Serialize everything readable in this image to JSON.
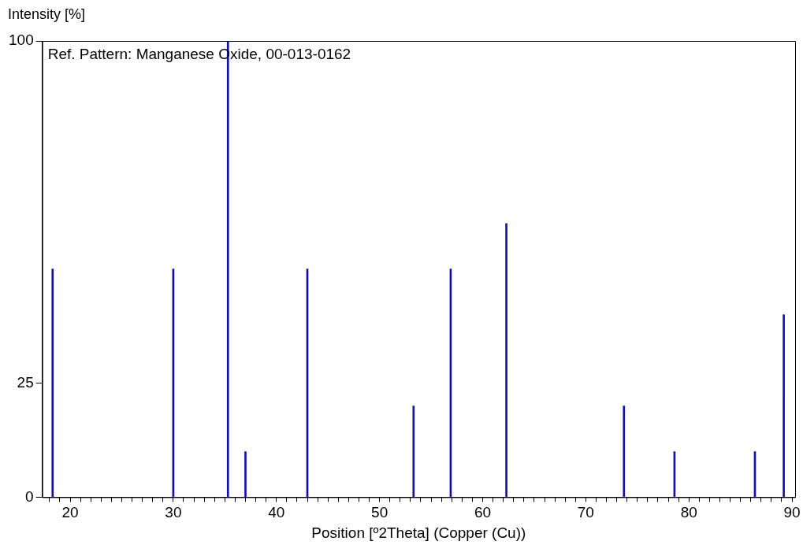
{
  "chart_data": {
    "type": "bar",
    "xlabel": "Position [º2Theta] (Copper (Cu))",
    "ylabel": "Intensity [%]",
    "annotations": [
      "Ref. Pattern: Manganese Oxide, 00-013-0162"
    ],
    "x": [
      18.3,
      30.0,
      35.3,
      37.0,
      43.0,
      53.3,
      56.9,
      62.3,
      73.7,
      78.6,
      86.4,
      89.2
    ],
    "values": [
      50,
      50,
      100,
      10,
      50,
      20,
      50,
      60,
      20,
      10,
      10,
      40
    ],
    "color": "#1010b0",
    "xlim": [
      17.3,
      90.3
    ],
    "ylim": [
      0,
      100
    ],
    "xticks": [
      {
        "value": 18,
        "label": null
      },
      {
        "value": 19,
        "label": null
      },
      20,
      {
        "value": 21,
        "label": null
      },
      {
        "value": 22,
        "label": null
      },
      {
        "value": 23,
        "label": null
      },
      {
        "value": 24,
        "label": null
      },
      {
        "value": 25,
        "label": null
      },
      {
        "value": 26,
        "label": null
      },
      {
        "value": 27,
        "label": null
      },
      {
        "value": 28,
        "label": null
      },
      {
        "value": 29,
        "label": null
      },
      30,
      {
        "value": 31,
        "label": null
      },
      {
        "value": 32,
        "label": null
      },
      {
        "value": 33,
        "label": null
      },
      {
        "value": 34,
        "label": null
      },
      {
        "value": 35,
        "label": null
      },
      {
        "value": 36,
        "label": null
      },
      {
        "value": 37,
        "label": null
      },
      {
        "value": 38,
        "label": null
      },
      {
        "value": 39,
        "label": null
      },
      40,
      {
        "value": 41,
        "label": null
      },
      {
        "value": 42,
        "label": null
      },
      {
        "value": 43,
        "label": null
      },
      {
        "value": 44,
        "label": null
      },
      {
        "value": 45,
        "label": null
      },
      {
        "value": 46,
        "label": null
      },
      {
        "value": 47,
        "label": null
      },
      {
        "value": 48,
        "label": null
      },
      {
        "value": 49,
        "label": null
      },
      50,
      {
        "value": 51,
        "label": null
      },
      {
        "value": 52,
        "label": null
      },
      {
        "value": 53,
        "label": null
      },
      {
        "value": 54,
        "label": null
      },
      {
        "value": 55,
        "label": null
      },
      {
        "value": 56,
        "label": null
      },
      {
        "value": 57,
        "label": null
      },
      {
        "value": 58,
        "label": null
      },
      {
        "value": 59,
        "label": null
      },
      60,
      {
        "value": 61,
        "label": null
      },
      {
        "value": 62,
        "label": null
      },
      {
        "value": 63,
        "label": null
      },
      {
        "value": 64,
        "label": null
      },
      {
        "value": 65,
        "label": null
      },
      {
        "value": 66,
        "label": null
      },
      {
        "value": 67,
        "label": null
      },
      {
        "value": 68,
        "label": null
      },
      {
        "value": 69,
        "label": null
      },
      70,
      {
        "value": 71,
        "label": null
      },
      {
        "value": 72,
        "label": null
      },
      {
        "value": 73,
        "label": null
      },
      {
        "value": 74,
        "label": null
      },
      {
        "value": 75,
        "label": null
      },
      {
        "value": 76,
        "label": null
      },
      {
        "value": 77,
        "label": null
      },
      {
        "value": 78,
        "label": null
      },
      {
        "value": 79,
        "label": null
      },
      80,
      {
        "value": 81,
        "label": null
      },
      {
        "value": 82,
        "label": null
      },
      {
        "value": 83,
        "label": null
      },
      {
        "value": 84,
        "label": null
      },
      {
        "value": 85,
        "label": null
      },
      {
        "value": 86,
        "label": null
      },
      {
        "value": 87,
        "label": null
      },
      {
        "value": 88,
        "label": null
      },
      {
        "value": 89,
        "label": null
      },
      90
    ],
    "yticks": [
      0,
      25,
      100
    ],
    "grid": false,
    "legend": false
  }
}
